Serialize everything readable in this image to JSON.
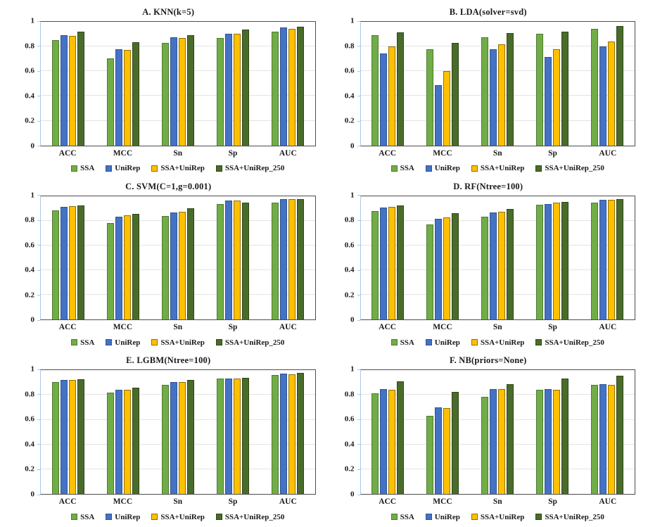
{
  "figure": {
    "background": "#ffffff",
    "layout": "2x3-grid-of-bar-charts",
    "frame_color": "#4d4d4d",
    "y_axis_color": "#a9c9ea",
    "gridline_color": "#e4e4e4",
    "text_color": "#1a1a1a"
  },
  "axis": {
    "yticks": [
      0,
      0.2,
      0.4,
      0.6,
      0.8,
      1
    ],
    "ytick_labels": [
      "0",
      "0.2",
      "0.4",
      "0.6",
      "0.8",
      "1"
    ]
  },
  "series_colors": [
    {
      "name": "SSA",
      "fill": "#70ad47",
      "border": "#4e7a2e"
    },
    {
      "name": "UniRep",
      "fill": "#4472c4",
      "border": "#2e5395"
    },
    {
      "name": "SSA+UniRep",
      "fill": "#ffc000",
      "border": "#8f7000"
    },
    {
      "name": "SSA+UniRep_250",
      "fill": "#4a6c2a",
      "border": "#2f4519"
    }
  ],
  "chart_data": [
    {
      "type": "bar",
      "title": "A. KNN(k=5)",
      "categories": [
        "ACC",
        "MCC",
        "Sn",
        "Sp",
        "AUC"
      ],
      "series": [
        {
          "name": "SSA",
          "values": [
            0.85,
            0.705,
            0.83,
            0.87,
            0.92
          ]
        },
        {
          "name": "UniRep",
          "values": [
            0.89,
            0.78,
            0.875,
            0.905,
            0.955
          ]
        },
        {
          "name": "SSA+UniRep",
          "values": [
            0.885,
            0.775,
            0.87,
            0.905,
            0.945
          ]
        },
        {
          "name": "SSA+UniRep_250",
          "values": [
            0.92,
            0.835,
            0.89,
            0.94,
            0.96
          ]
        }
      ],
      "ylim": [
        0,
        1
      ],
      "grid": true,
      "legend_position": "bottom"
    },
    {
      "type": "bar",
      "title": "B. LDA(solver=svd)",
      "categories": [
        "ACC",
        "MCC",
        "Sn",
        "Sp",
        "AUC"
      ],
      "series": [
        {
          "name": "SSA",
          "values": [
            0.89,
            0.78,
            0.875,
            0.905,
            0.945
          ]
        },
        {
          "name": "UniRep",
          "values": [
            0.745,
            0.49,
            0.78,
            0.715,
            0.8
          ]
        },
        {
          "name": "SSA+UniRep",
          "values": [
            0.8,
            0.6,
            0.82,
            0.78,
            0.84
          ]
        },
        {
          "name": "SSA+UniRep_250",
          "values": [
            0.915,
            0.83,
            0.91,
            0.92,
            0.965
          ]
        }
      ],
      "ylim": [
        0,
        1
      ],
      "grid": true,
      "legend_position": "bottom"
    },
    {
      "type": "bar",
      "title": "C. SVM(C=1,g=0.001)",
      "categories": [
        "ACC",
        "MCC",
        "Sn",
        "Sp",
        "AUC"
      ],
      "series": [
        {
          "name": "SSA",
          "values": [
            0.885,
            0.78,
            0.84,
            0.935,
            0.945
          ]
        },
        {
          "name": "UniRep",
          "values": [
            0.915,
            0.835,
            0.865,
            0.965,
            0.975
          ]
        },
        {
          "name": "SSA+UniRep",
          "values": [
            0.92,
            0.845,
            0.875,
            0.965,
            0.975
          ]
        },
        {
          "name": "SSA+UniRep_250",
          "values": [
            0.925,
            0.855,
            0.9,
            0.945,
            0.975
          ]
        }
      ],
      "ylim": [
        0,
        1
      ],
      "grid": true,
      "legend_position": "bottom"
    },
    {
      "type": "bar",
      "title": "D. RF(Ntree=100)",
      "categories": [
        "ACC",
        "MCC",
        "Sn",
        "Sp",
        "AUC"
      ],
      "series": [
        {
          "name": "SSA",
          "values": [
            0.88,
            0.77,
            0.835,
            0.93,
            0.945
          ]
        },
        {
          "name": "UniRep",
          "values": [
            0.905,
            0.815,
            0.87,
            0.935,
            0.97
          ]
        },
        {
          "name": "SSA+UniRep",
          "values": [
            0.91,
            0.825,
            0.875,
            0.945,
            0.97
          ]
        },
        {
          "name": "SSA+UniRep_250",
          "values": [
            0.925,
            0.86,
            0.895,
            0.955,
            0.975
          ]
        }
      ],
      "ylim": [
        0,
        1
      ],
      "grid": true,
      "legend_position": "bottom"
    },
    {
      "type": "bar",
      "title": "E. LGBM(Ntree=100)",
      "categories": [
        "ACC",
        "MCC",
        "Sn",
        "Sp",
        "AUC"
      ],
      "series": [
        {
          "name": "SSA",
          "values": [
            0.905,
            0.82,
            0.88,
            0.935,
            0.96
          ]
        },
        {
          "name": "UniRep",
          "values": [
            0.925,
            0.84,
            0.905,
            0.935,
            0.975
          ]
        },
        {
          "name": "SSA+UniRep",
          "values": [
            0.925,
            0.845,
            0.905,
            0.935,
            0.97
          ]
        },
        {
          "name": "SSA+UniRep_250",
          "values": [
            0.93,
            0.86,
            0.92,
            0.94,
            0.98
          ]
        }
      ],
      "ylim": [
        0,
        1
      ],
      "grid": true,
      "legend_position": "bottom"
    },
    {
      "type": "bar",
      "title": "F. NB(priors=None)",
      "categories": [
        "ACC",
        "MCC",
        "Sn",
        "Sp",
        "AUC"
      ],
      "series": [
        {
          "name": "SSA",
          "values": [
            0.815,
            0.63,
            0.785,
            0.84,
            0.88
          ]
        },
        {
          "name": "UniRep",
          "values": [
            0.85,
            0.7,
            0.85,
            0.85,
            0.89
          ]
        },
        {
          "name": "SSA+UniRep",
          "values": [
            0.845,
            0.695,
            0.85,
            0.845,
            0.885
          ]
        },
        {
          "name": "SSA+UniRep_250",
          "values": [
            0.91,
            0.825,
            0.89,
            0.935,
            0.955
          ]
        }
      ],
      "ylim": [
        0,
        1
      ],
      "grid": true,
      "legend_position": "bottom"
    }
  ]
}
